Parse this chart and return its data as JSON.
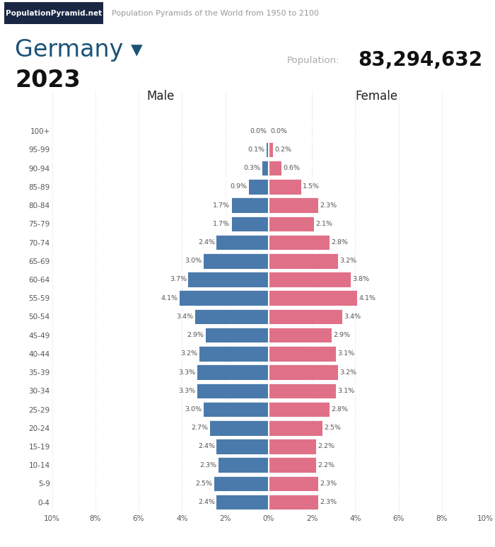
{
  "title_country": "Germany ▾",
  "title_year": "2023",
  "population_label": "Population:",
  "population_value": "83,294,632",
  "header_text": "Population Pyramids of the World from 1950 to 2100",
  "brand_text": "PopulationPyramid.net",
  "male_label": "Male",
  "female_label": "Female",
  "age_groups": [
    "0-4",
    "5-9",
    "10-14",
    "15-19",
    "20-24",
    "25-29",
    "30-34",
    "35-39",
    "40-44",
    "45-49",
    "50-54",
    "55-59",
    "60-64",
    "65-69",
    "70-74",
    "75-79",
    "80-84",
    "85-89",
    "90-94",
    "95-99",
    "100+"
  ],
  "male_pct": [
    2.4,
    2.5,
    2.3,
    2.4,
    2.7,
    3.0,
    3.3,
    3.3,
    3.2,
    2.9,
    3.4,
    4.1,
    3.7,
    3.0,
    2.4,
    1.7,
    1.7,
    0.9,
    0.3,
    0.1,
    0.0
  ],
  "female_pct": [
    2.3,
    2.3,
    2.2,
    2.2,
    2.5,
    2.8,
    3.1,
    3.2,
    3.1,
    2.9,
    3.4,
    4.1,
    3.8,
    3.2,
    2.8,
    2.1,
    2.3,
    1.5,
    0.6,
    0.2,
    0.0
  ],
  "male_color": "#4a7aab",
  "female_color": "#e07088",
  "bg_color": "#ffffff",
  "text_color_dark": "#222222",
  "axis_label_color": "#555555",
  "brand_bg_color": "#1a2744",
  "brand_text_color": "#ffffff",
  "header_text_color": "#999999",
  "country_color": "#1a5276",
  "year_color": "#111111",
  "pop_label_color": "#aaaaaa",
  "pop_value_color": "#111111",
  "xlim": 10,
  "xtick_vals": [
    -10,
    -8,
    -6,
    -4,
    -2,
    0,
    2,
    4,
    6,
    8,
    10
  ],
  "xtick_labels": [
    "10%",
    "8%",
    "6%",
    "4%",
    "2%",
    "0%",
    "2%",
    "4%",
    "6%",
    "8%",
    "10%"
  ]
}
